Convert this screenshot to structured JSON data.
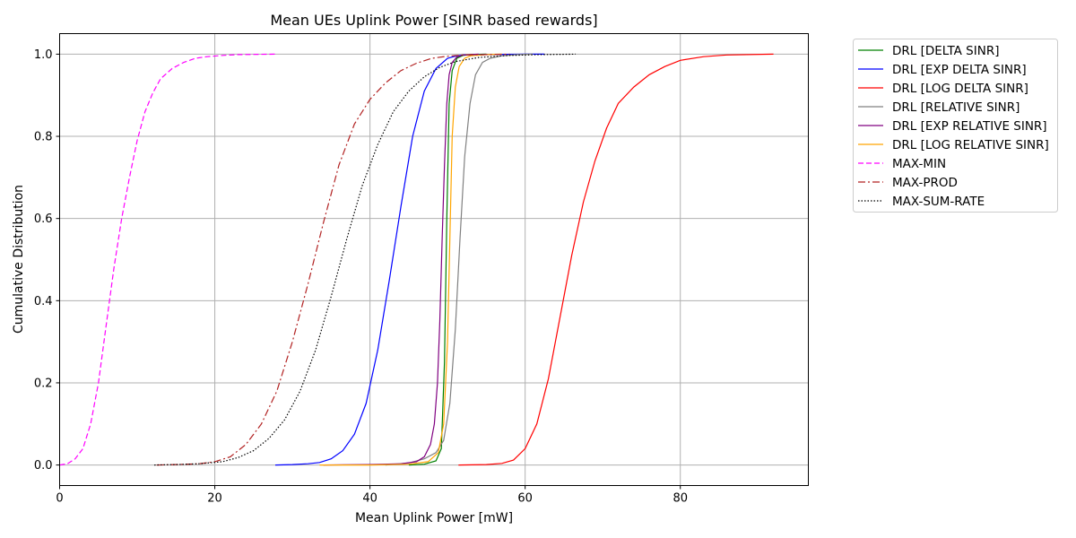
{
  "chart_data": {
    "type": "line",
    "title": "Mean UEs Uplink Power [SINR based rewards]",
    "xlabel": "Mean Uplink Power [mW]",
    "ylabel": "Cumulative Distribution",
    "xlim": [
      0,
      96.5
    ],
    "ylim": [
      -0.05,
      1.05
    ],
    "xticks": [
      0,
      20,
      40,
      60,
      80
    ],
    "yticks": [
      0.0,
      0.2,
      0.4,
      0.6,
      0.8,
      1.0
    ],
    "xtick_labels": [
      "0",
      "20",
      "40",
      "60",
      "80"
    ],
    "ytick_labels": [
      "0.0",
      "0.2",
      "0.4",
      "0.6",
      "0.8",
      "1.0"
    ],
    "grid": true,
    "legend_position": "outside-right-top",
    "series": [
      {
        "name": "DRL [DELTA SINR]",
        "color": "#008000",
        "dash": "solid",
        "x": [
          45.0,
          47.0,
          48.5,
          49.2,
          49.6,
          49.9,
          50.2,
          50.6,
          51.2,
          52.0,
          53.0,
          55.0
        ],
        "y": [
          0.0,
          0.002,
          0.01,
          0.04,
          0.25,
          0.6,
          0.88,
          0.96,
          0.99,
          0.997,
          0.999,
          1.0
        ]
      },
      {
        "name": "DRL [EXP DELTA SINR]",
        "color": "#0000ff",
        "dash": "solid",
        "x": [
          27.8,
          30.0,
          32.0,
          33.5,
          35.0,
          36.5,
          38.0,
          39.5,
          41.0,
          42.5,
          44.0,
          45.5,
          47.0,
          48.5,
          50.0,
          51.0,
          52.0,
          55.0,
          60.0,
          62.5
        ],
        "y": [
          0.0,
          0.001,
          0.003,
          0.006,
          0.015,
          0.035,
          0.075,
          0.15,
          0.28,
          0.45,
          0.63,
          0.8,
          0.91,
          0.965,
          0.99,
          0.995,
          0.998,
          0.999,
          1.0,
          1.0
        ]
      },
      {
        "name": "DRL [LOG DELTA SINR]",
        "color": "#ff0000",
        "dash": "solid",
        "x": [
          51.4,
          55.0,
          57.0,
          58.5,
          60.0,
          61.5,
          63.0,
          64.5,
          66.0,
          67.5,
          69.0,
          70.5,
          72.0,
          74.0,
          76.0,
          78.0,
          80.0,
          83.0,
          86.0,
          92.0
        ],
        "y": [
          0.0,
          0.001,
          0.004,
          0.012,
          0.04,
          0.1,
          0.21,
          0.36,
          0.51,
          0.64,
          0.74,
          0.82,
          0.88,
          0.92,
          0.95,
          0.97,
          0.985,
          0.994,
          0.998,
          1.0
        ]
      },
      {
        "name": "DRL [RELATIVE SINR]",
        "color": "#808080",
        "dash": "solid",
        "x": [
          42.0,
          45.0,
          47.0,
          48.5,
          49.5,
          50.3,
          51.0,
          51.6,
          52.2,
          52.9,
          53.6,
          54.5,
          55.5,
          57.0,
          59.0,
          61.0
        ],
        "y": [
          0.0,
          0.005,
          0.015,
          0.03,
          0.06,
          0.15,
          0.33,
          0.55,
          0.75,
          0.88,
          0.95,
          0.98,
          0.99,
          0.996,
          0.999,
          1.0
        ]
      },
      {
        "name": "DRL [EXP RELATIVE SINR]",
        "color": "#800080",
        "dash": "solid",
        "x": [
          34.0,
          40.0,
          44.0,
          46.0,
          47.0,
          47.8,
          48.3,
          48.7,
          49.0,
          49.3,
          49.6,
          49.9,
          50.2,
          50.6,
          51.2,
          52.0,
          54.0
        ],
        "y": [
          0.0,
          0.001,
          0.003,
          0.008,
          0.02,
          0.05,
          0.1,
          0.2,
          0.35,
          0.55,
          0.73,
          0.88,
          0.95,
          0.98,
          0.993,
          0.998,
          1.0
        ]
      },
      {
        "name": "DRL [LOG RELATIVE SINR]",
        "color": "#ffa500",
        "dash": "solid",
        "x": [
          33.5,
          40.0,
          45.0,
          47.5,
          48.8,
          49.5,
          50.0,
          50.3,
          50.6,
          51.0,
          51.5,
          52.2,
          53.0,
          55.0,
          57.0
        ],
        "y": [
          0.0,
          0.0,
          0.002,
          0.008,
          0.03,
          0.1,
          0.3,
          0.55,
          0.8,
          0.92,
          0.97,
          0.99,
          0.996,
          0.999,
          1.0
        ]
      },
      {
        "name": "MAX-MIN",
        "color": "#ff00ff",
        "dash": "6,3",
        "x": [
          0.0,
          1.0,
          2.0,
          3.0,
          4.0,
          5.0,
          6.0,
          7.0,
          8.0,
          9.0,
          10.0,
          11.0,
          12.0,
          13.0,
          14.5,
          16.0,
          17.5,
          19.0,
          21.0,
          23.0,
          27.8
        ],
        "y": [
          0.0,
          0.003,
          0.015,
          0.04,
          0.1,
          0.2,
          0.34,
          0.48,
          0.6,
          0.7,
          0.79,
          0.86,
          0.905,
          0.94,
          0.965,
          0.98,
          0.99,
          0.994,
          0.997,
          0.999,
          1.0
        ]
      },
      {
        "name": "MAX-PROD",
        "color": "#b22222",
        "dash": "8,3,2,3",
        "x": [
          12.5,
          15.0,
          18.0,
          20.0,
          22.0,
          24.0,
          26.0,
          28.0,
          30.0,
          32.0,
          34.0,
          36.0,
          38.0,
          40.0,
          42.0,
          44.0,
          46.0,
          48.0,
          50.0,
          52.0,
          55.0,
          58.0
        ],
        "y": [
          0.0,
          0.001,
          0.003,
          0.008,
          0.02,
          0.05,
          0.1,
          0.18,
          0.3,
          0.44,
          0.59,
          0.73,
          0.83,
          0.89,
          0.93,
          0.96,
          0.978,
          0.99,
          0.995,
          0.998,
          0.999,
          1.0
        ]
      },
      {
        "name": "MAX-SUM-RATE",
        "color": "#000000",
        "dash": "1.5,2",
        "x": [
          12.2,
          15.0,
          18.0,
          21.0,
          23.0,
          25.0,
          27.0,
          29.0,
          31.0,
          33.0,
          35.0,
          37.0,
          39.0,
          41.0,
          43.0,
          45.0,
          47.0,
          49.0,
          51.0,
          54.0,
          58.0,
          62.0,
          66.5
        ],
        "y": [
          0.0,
          0.001,
          0.003,
          0.008,
          0.018,
          0.035,
          0.065,
          0.11,
          0.18,
          0.28,
          0.41,
          0.55,
          0.68,
          0.78,
          0.86,
          0.91,
          0.945,
          0.968,
          0.982,
          0.992,
          0.997,
          0.999,
          1.0
        ]
      }
    ]
  }
}
